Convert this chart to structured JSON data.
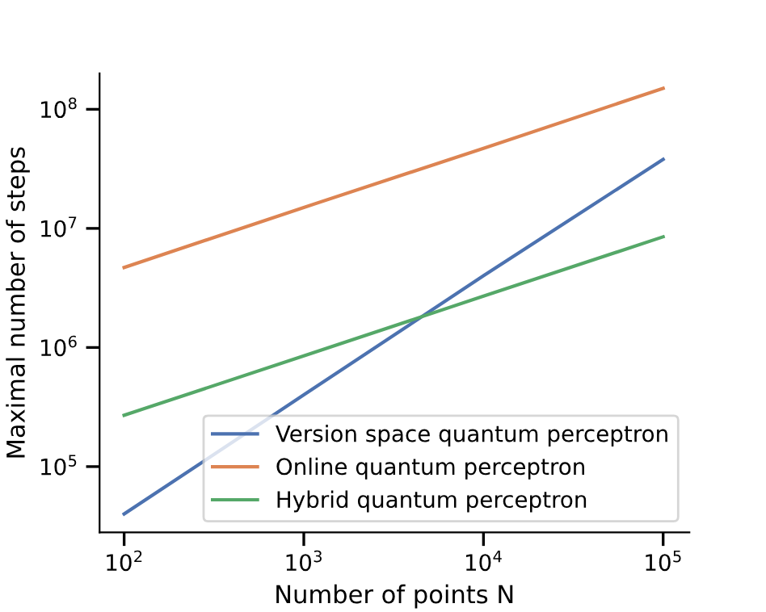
{
  "chart_data": {
    "type": "line",
    "xlabel": "Number of points N",
    "ylabel": "Maximal number of steps",
    "log": "xy",
    "x": [
      100,
      1000,
      10000,
      100000
    ],
    "series": [
      {
        "name": "Version space quantum perceptron",
        "color": "#4c72b0",
        "values": [
          40000,
          400000,
          4000000,
          38000000
        ]
      },
      {
        "name": "Online quantum perceptron",
        "color": "#dd8452",
        "values": [
          4700000,
          15000000,
          47000000,
          150000000
        ]
      },
      {
        "name": "Hybrid quantum perceptron",
        "color": "#55a868",
        "values": [
          270000,
          850000,
          2700000,
          8500000
        ]
      }
    ],
    "xlim": [
      73,
      140000
    ],
    "ylim": [
      28000,
      200000000
    ],
    "xticks": [
      {
        "value": 100,
        "label": "10$^{2}$"
      },
      {
        "value": 1000,
        "label": "10$^{3}$"
      },
      {
        "value": 10000,
        "label": "10$^{4}$"
      },
      {
        "value": 100000,
        "label": "10$^{5}$"
      }
    ],
    "yticks": [
      {
        "value": 100000,
        "label": "10$^{5}$"
      },
      {
        "value": 1000000,
        "label": "10$^{6}$"
      },
      {
        "value": 10000000,
        "label": "10$^{7}$"
      },
      {
        "value": 100000000,
        "label": "10$^{8}$"
      }
    ],
    "grid": false,
    "legend": "bottom right",
    "marker": "none",
    "line_style": "solid"
  }
}
